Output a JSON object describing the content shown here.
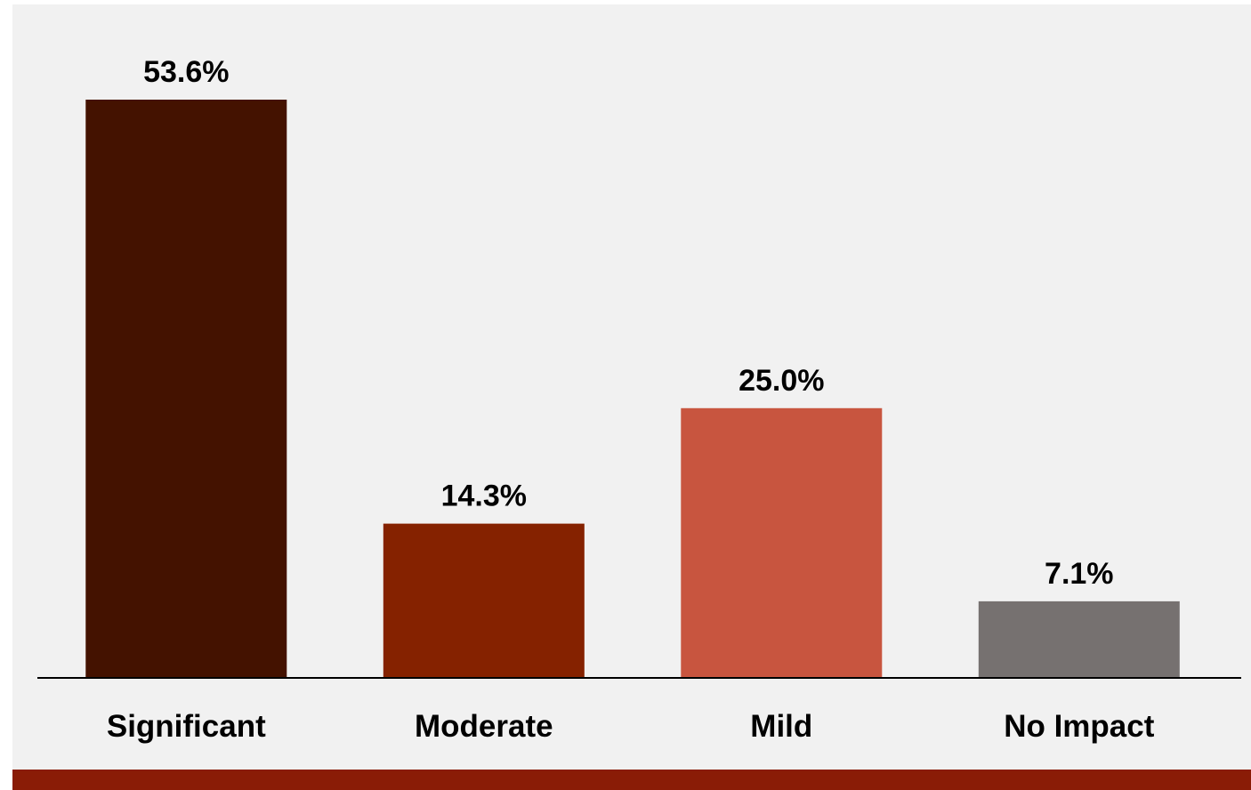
{
  "chart_data": {
    "type": "bar",
    "categories": [
      "Significant",
      "Moderate",
      "Mild",
      "No Impact"
    ],
    "values": [
      53.6,
      14.3,
      25.0,
      7.1
    ],
    "value_labels": [
      "53.6%",
      "14.3%",
      "25.0%",
      "7.1%"
    ],
    "colors": [
      "#441200",
      "#852200",
      "#c8553f",
      "#767170"
    ],
    "ylim": [
      0,
      53.6
    ],
    "grid": false,
    "legend": "none",
    "title": "",
    "xlabel": "",
    "ylabel": ""
  },
  "theme": {
    "background": "#f1f1f1",
    "footer_color": "#8a1c06",
    "axis_color": "#000000"
  }
}
